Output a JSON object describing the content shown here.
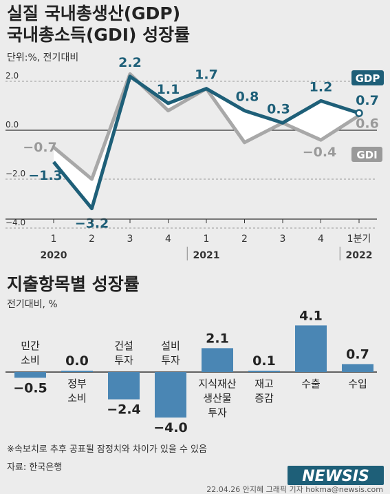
{
  "header": {
    "title_line1": "실질 국내총생산(GDP)",
    "title_line2": "국내총소득(GDI) 성장률",
    "unit": "단위:%, 전기대비"
  },
  "chart_data": [
    {
      "type": "line",
      "categories": [
        "1",
        "2",
        "3",
        "4",
        "1",
        "2",
        "3",
        "4",
        "1분기"
      ],
      "year_labels": [
        {
          "label": "2020",
          "index": 0
        },
        {
          "label": "2021",
          "index": 4
        },
        {
          "label": "2022",
          "index": 8
        }
      ],
      "ylim": [
        -4.0,
        2.2
      ],
      "yticks": [
        2.0,
        0.0,
        -2.0,
        -4.0
      ],
      "ytick_labels": [
        "2.0",
        "0.0",
        "-2.0",
        "-4.0"
      ],
      "series": [
        {
          "name": "GDP",
          "values": [
            -1.3,
            -3.2,
            2.2,
            1.1,
            1.7,
            0.8,
            0.3,
            1.2,
            0.7
          ],
          "color": "#1e5f78"
        },
        {
          "name": "GDI",
          "values": [
            -0.7,
            -2.0,
            2.3,
            0.8,
            1.7,
            -0.5,
            0.3,
            -0.4,
            0.6
          ],
          "color": "#a8a8a8"
        }
      ],
      "data_labels": {
        "GDP": [
          "-1.3",
          "-3.2",
          "2.2",
          "1.1",
          "1.7",
          "0.8",
          "0.3",
          "1.2",
          "0.7"
        ],
        "GDI": [
          "-0.7",
          "",
          "",
          "",
          "",
          "",
          "",
          "-0.4",
          "0.6"
        ]
      }
    },
    {
      "type": "bar",
      "title": "지출항목별 성장률",
      "unit": "전기대비, %",
      "categories": [
        "민간 소비",
        "정부 소비",
        "건설 투자",
        "설비 투자",
        "지식재산 생산물 투자",
        "재고 증감",
        "수출",
        "수입"
      ],
      "category_lines": [
        [
          "민간",
          "소비"
        ],
        [
          "정부",
          "소비"
        ],
        [
          "건설",
          "투자"
        ],
        [
          "설비",
          "투자"
        ],
        [
          "지식재산",
          "생산물",
          "투자"
        ],
        [
          "재고",
          "증감"
        ],
        [
          "수출"
        ],
        [
          "수입"
        ]
      ],
      "values": [
        -0.5,
        0.0,
        -2.4,
        -4.0,
        2.1,
        0.1,
        4.1,
        0.7
      ],
      "value_labels": [
        "-0.5",
        "0.0",
        "-2.4",
        "-4.0",
        "2.1",
        "0.1",
        "4.1",
        "0.7"
      ],
      "color": "#4a86b4"
    }
  ],
  "footer": {
    "note": "※속보치로 추후 공표될 잠정치와 차이가 있을 수 있음",
    "source": "자료: 한국은행",
    "logo": "NEWSIS",
    "credit": "22.04.26 안지혜 그래픽 기자 hokma@newsis.com"
  }
}
